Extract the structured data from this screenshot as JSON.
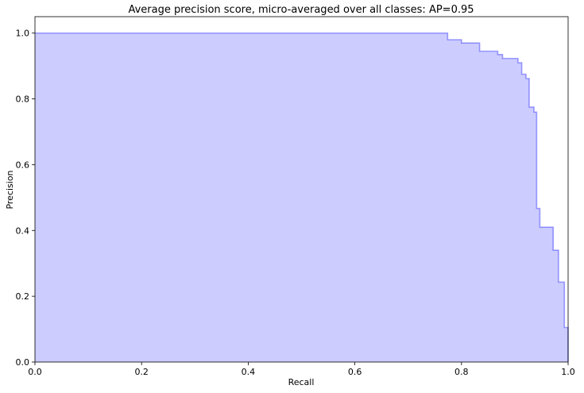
{
  "chart_data": {
    "type": "area",
    "title": "Average precision score, micro-averaged over all classes: AP=0.95",
    "xlabel": "Recall",
    "ylabel": "Precision",
    "xlim": [
      0.0,
      1.0
    ],
    "ylim": [
      0.0,
      1.05
    ],
    "xticks": [
      "0.0",
      "0.2",
      "0.4",
      "0.6",
      "0.8",
      "1.0"
    ],
    "yticks": [
      "0.0",
      "0.2",
      "0.4",
      "0.6",
      "0.8",
      "1.0"
    ],
    "grid": false,
    "legend": "none",
    "step": "post",
    "fill_color": "#ccccff",
    "line_color": "#0000ff",
    "series": [
      {
        "recall": [
          0.0,
          0.774,
          0.8,
          0.834,
          0.868,
          0.877,
          0.906,
          0.913,
          0.921,
          0.927,
          0.936,
          0.941,
          0.947,
          0.957,
          0.972,
          0.982,
          0.993,
          1.0
        ],
        "precision": [
          1.0,
          0.98,
          0.97,
          0.945,
          0.935,
          0.923,
          0.91,
          0.875,
          0.862,
          0.775,
          0.76,
          0.467,
          0.41,
          0.41,
          0.34,
          0.243,
          0.105,
          0.0
        ]
      }
    ]
  }
}
